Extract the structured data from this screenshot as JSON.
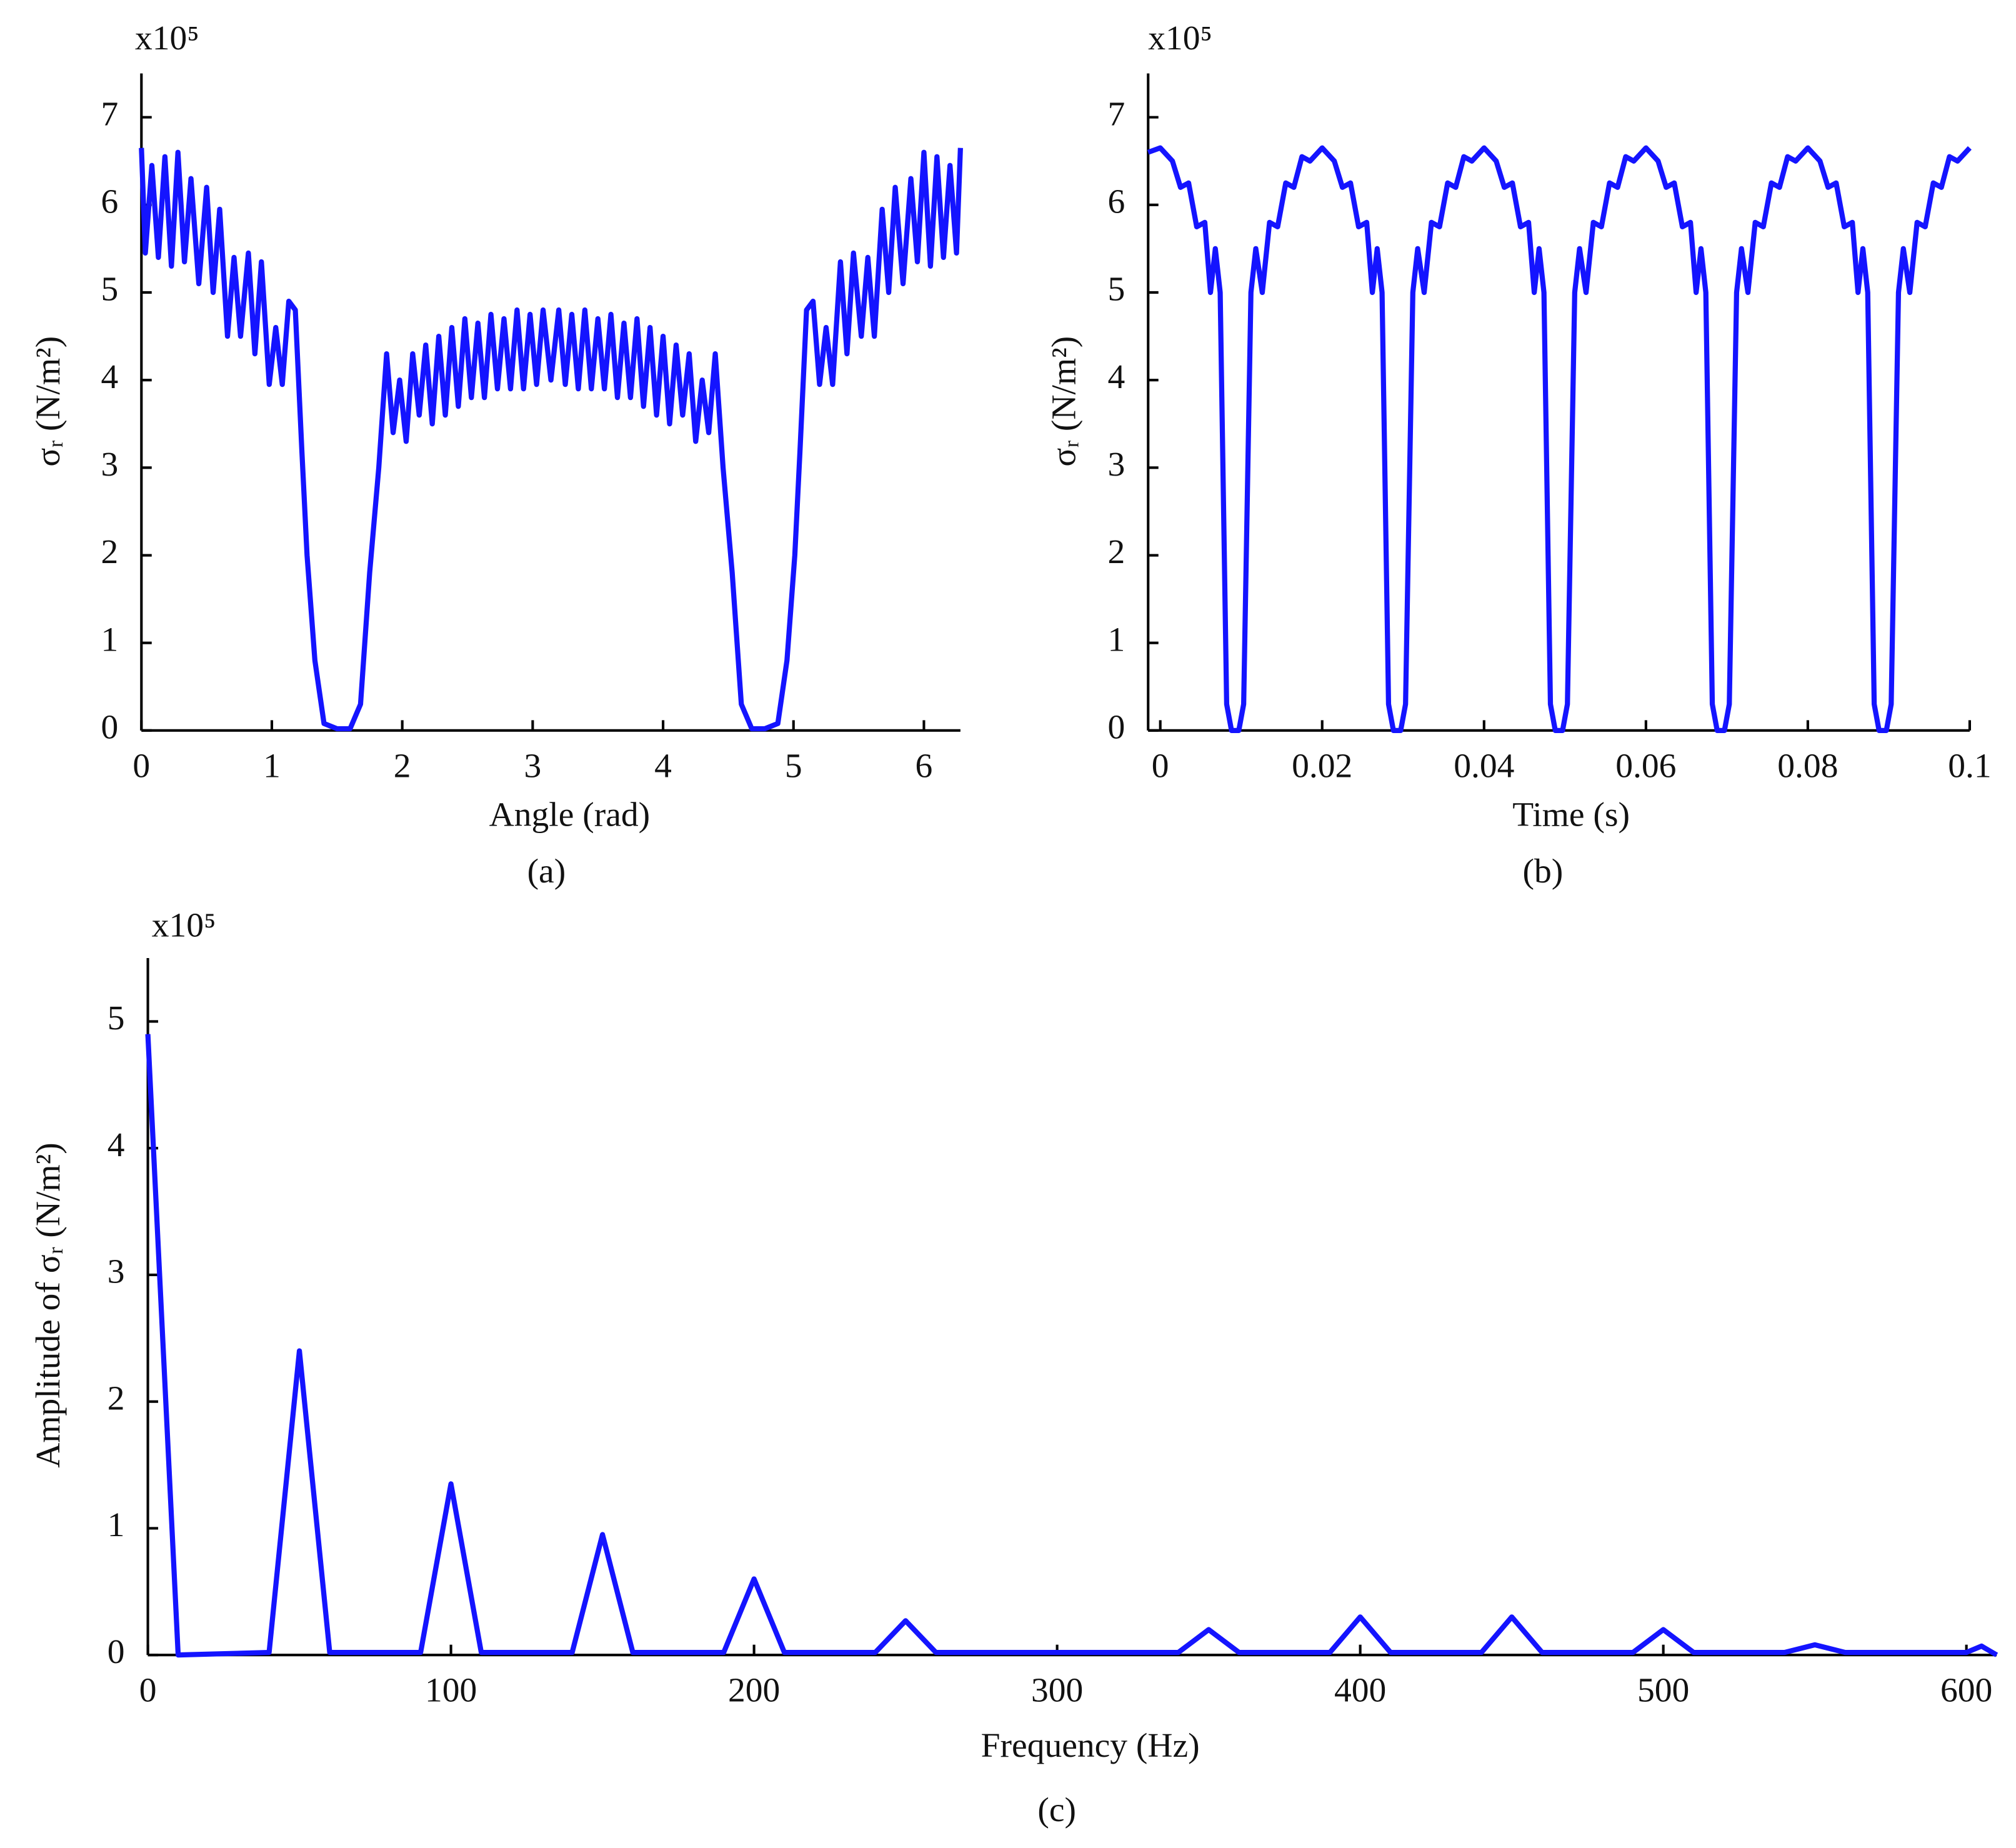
{
  "chart_data": [
    {
      "type": "line",
      "y_multiplier": "x10⁵",
      "y_label": "σᵣ (N/m²)",
      "x_label": "Angle (rad)",
      "panel_label": "(a)",
      "color": "#1414ff",
      "xlim": [
        0,
        6.28
      ],
      "xticks": [
        0,
        1,
        2,
        3,
        4,
        5,
        6
      ],
      "ylim": [
        0,
        7.5
      ],
      "yticks": [
        0,
        1,
        2,
        3,
        4,
        5,
        6,
        7
      ],
      "x": [
        0,
        0.03,
        0.08,
        0.13,
        0.18,
        0.23,
        0.28,
        0.33,
        0.38,
        0.44,
        0.5,
        0.55,
        0.6,
        0.66,
        0.71,
        0.76,
        0.82,
        0.87,
        0.92,
        0.98,
        1.03,
        1.08,
        1.13,
        1.18,
        1.23,
        1.27,
        1.33,
        1.4,
        1.5,
        1.6,
        1.68,
        1.75,
        1.82,
        1.88,
        1.93,
        1.98,
        2.03,
        2.08,
        2.13,
        2.18,
        2.23,
        2.28,
        2.33,
        2.38,
        2.43,
        2.48,
        2.53,
        2.58,
        2.63,
        2.68,
        2.73,
        2.78,
        2.83,
        2.88,
        2.93,
        2.98,
        3.03,
        3.08,
        3.14,
        3.2,
        3.25,
        3.3,
        3.35,
        3.4,
        3.45,
        3.5,
        3.55,
        3.6,
        3.65,
        3.7,
        3.75,
        3.8,
        3.85,
        3.9,
        3.95,
        4.0,
        4.05,
        4.1,
        4.15,
        4.2,
        4.25,
        4.3,
        4.35,
        4.4,
        4.46,
        4.53,
        4.6,
        4.68,
        4.78,
        4.88,
        4.95,
        5.01,
        5.05,
        5.1,
        5.15,
        5.2,
        5.25,
        5.3,
        5.36,
        5.41,
        5.46,
        5.52,
        5.57,
        5.62,
        5.68,
        5.73,
        5.78,
        5.84,
        5.9,
        5.95,
        6.0,
        6.05,
        6.1,
        6.15,
        6.2,
        6.25,
        6.28
      ],
      "values": [
        6.65,
        5.45,
        6.45,
        5.4,
        6.55,
        5.3,
        6.6,
        5.35,
        6.3,
        5.1,
        6.2,
        5.0,
        5.95,
        4.5,
        5.4,
        4.5,
        5.45,
        4.3,
        5.35,
        3.95,
        4.6,
        3.95,
        4.9,
        4.8,
        3.2,
        2.0,
        0.8,
        0.08,
        0.02,
        0.02,
        0.3,
        1.8,
        3.0,
        4.3,
        3.4,
        4.0,
        3.3,
        4.3,
        3.6,
        4.4,
        3.5,
        4.5,
        3.6,
        4.6,
        3.7,
        4.7,
        3.8,
        4.65,
        3.8,
        4.75,
        3.9,
        4.7,
        3.9,
        4.8,
        3.9,
        4.75,
        3.95,
        4.8,
        4.0,
        4.8,
        3.95,
        4.75,
        3.9,
        4.8,
        3.9,
        4.7,
        3.9,
        4.75,
        3.8,
        4.65,
        3.8,
        4.7,
        3.7,
        4.6,
        3.6,
        4.5,
        3.5,
        4.4,
        3.6,
        4.3,
        3.3,
        4.0,
        3.4,
        4.3,
        3.0,
        1.8,
        0.3,
        0.02,
        0.02,
        0.08,
        0.8,
        2.0,
        3.2,
        4.8,
        4.9,
        3.95,
        4.6,
        3.95,
        5.35,
        4.3,
        5.45,
        4.5,
        5.4,
        4.5,
        5.95,
        5.0,
        6.2,
        5.1,
        6.3,
        5.35,
        6.6,
        5.3,
        6.55,
        5.4,
        6.45,
        5.45,
        6.65
      ]
    },
    {
      "type": "line",
      "y_multiplier": "x10⁵",
      "y_label": "σᵣ (N/m²)",
      "x_label": "Time (s)",
      "panel_label": "(b)",
      "color": "#1414ff",
      "xlim": [
        -0.0015,
        0.1
      ],
      "xticks": [
        0,
        0.02,
        0.04,
        0.06,
        0.08,
        0.1
      ],
      "ylim": [
        0,
        7.5
      ],
      "yticks": [
        0,
        1,
        2,
        3,
        4,
        5,
        6,
        7
      ],
      "x": [
        -0.0015,
        0,
        0.0015,
        0.0025,
        0.0035,
        0.0045,
        0.0055,
        0.0062,
        0.0068,
        0.0074,
        0.0082,
        0.0088,
        0.0097,
        0.0103,
        0.0112,
        0.0118,
        0.0126,
        0.0135,
        0.0145,
        0.0155,
        0.0165,
        0.0175,
        0.0185,
        0.02,
        0.0215,
        0.0225,
        0.0235,
        0.0245,
        0.0255,
        0.0262,
        0.0268,
        0.0274,
        0.0282,
        0.0288,
        0.0297,
        0.0303,
        0.0312,
        0.0318,
        0.0326,
        0.0335,
        0.0345,
        0.0355,
        0.0365,
        0.0375,
        0.0385,
        0.04,
        0.0415,
        0.0425,
        0.0435,
        0.0445,
        0.0455,
        0.0462,
        0.0468,
        0.0474,
        0.0482,
        0.0488,
        0.0497,
        0.0503,
        0.0512,
        0.0518,
        0.0526,
        0.0535,
        0.0545,
        0.0555,
        0.0565,
        0.0575,
        0.0585,
        0.06,
        0.0615,
        0.0625,
        0.0635,
        0.0645,
        0.0655,
        0.0662,
        0.0668,
        0.0674,
        0.0682,
        0.0688,
        0.0697,
        0.0703,
        0.0712,
        0.0718,
        0.0726,
        0.0735,
        0.0745,
        0.0755,
        0.0765,
        0.0775,
        0.0785,
        0.08,
        0.0815,
        0.0825,
        0.0835,
        0.0845,
        0.0855,
        0.0862,
        0.0868,
        0.0874,
        0.0882,
        0.0888,
        0.0897,
        0.0903,
        0.0912,
        0.0918,
        0.0926,
        0.0935,
        0.0945,
        0.0955,
        0.0965,
        0.0975,
        0.0985,
        0.1
      ],
      "values": [
        6.6,
        6.65,
        6.5,
        6.2,
        6.25,
        5.75,
        5.8,
        5.0,
        5.5,
        5.0,
        0.3,
        0.0,
        0.0,
        0.3,
        5.0,
        5.5,
        5.0,
        5.8,
        5.75,
        6.25,
        6.2,
        6.55,
        6.5,
        6.65,
        6.5,
        6.2,
        6.25,
        5.75,
        5.8,
        5.0,
        5.5,
        5.0,
        0.3,
        0.0,
        0.0,
        0.3,
        5.0,
        5.5,
        5.0,
        5.8,
        5.75,
        6.25,
        6.2,
        6.55,
        6.5,
        6.65,
        6.5,
        6.2,
        6.25,
        5.75,
        5.8,
        5.0,
        5.5,
        5.0,
        0.3,
        0.0,
        0.0,
        0.3,
        5.0,
        5.5,
        5.0,
        5.8,
        5.75,
        6.25,
        6.2,
        6.55,
        6.5,
        6.65,
        6.5,
        6.2,
        6.25,
        5.75,
        5.8,
        5.0,
        5.5,
        5.0,
        0.3,
        0.0,
        0.0,
        0.3,
        5.0,
        5.5,
        5.0,
        5.8,
        5.75,
        6.25,
        6.2,
        6.55,
        6.5,
        6.65,
        6.5,
        6.2,
        6.25,
        5.75,
        5.8,
        5.0,
        5.5,
        5.0,
        0.3,
        0.0,
        0.0,
        0.3,
        5.0,
        5.5,
        5.0,
        5.8,
        5.75,
        6.25,
        6.2,
        6.55,
        6.5,
        6.65
      ]
    },
    {
      "type": "line",
      "y_multiplier": "x10⁵",
      "y_label": "Amplitude of σᵣ (N/m²)",
      "x_label": "Frequency (Hz)",
      "panel_label": "(c)",
      "color": "#1414ff",
      "xlim": [
        0,
        610
      ],
      "xticks": [
        0,
        100,
        200,
        300,
        400,
        500,
        600
      ],
      "ylim": [
        0,
        5.5
      ],
      "yticks": [
        0,
        1,
        2,
        3,
        4,
        5
      ],
      "x": [
        0,
        10,
        40,
        50,
        60,
        90,
        100,
        110,
        140,
        150,
        160,
        190,
        200,
        210,
        240,
        250,
        260,
        340,
        350,
        360,
        390,
        400,
        410,
        440,
        450,
        460,
        490,
        500,
        510,
        540,
        550,
        560,
        600,
        605,
        610
      ],
      "values": [
        4.9,
        0.0,
        0.02,
        2.4,
        0.02,
        0.02,
        1.35,
        0.02,
        0.02,
        0.95,
        0.02,
        0.02,
        0.6,
        0.02,
        0.02,
        0.27,
        0.02,
        0.02,
        0.2,
        0.02,
        0.02,
        0.3,
        0.02,
        0.02,
        0.3,
        0.02,
        0.02,
        0.2,
        0.02,
        0.02,
        0.08,
        0.02,
        0.02,
        0.07,
        0.0
      ]
    }
  ]
}
